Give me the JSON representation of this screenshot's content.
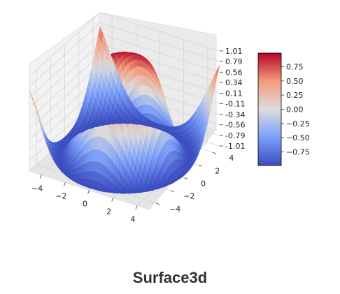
{
  "caption": "Surface3d",
  "chart_data": {
    "type": "surface3d",
    "colormap": "coolwarm",
    "function": "sin(sqrt(x^2 + y^2))",
    "x_ticks": [
      "−4",
      "−2",
      "0",
      "2",
      "4"
    ],
    "y_ticks": [
      "−4",
      "−2",
      "0",
      "2",
      "4"
    ],
    "z_ticks": [
      "1.01",
      "0.79",
      "0.56",
      "0.34",
      "0.11",
      "-0.11",
      "-0.34",
      "-0.56",
      "-0.79",
      "-1.01"
    ],
    "zlim": [
      -1.01,
      1.01
    ],
    "colorbar": {
      "ticks": [
        "0.75",
        "0.50",
        "0.25",
        "0.00",
        "−0.25",
        "−0.50",
        "−0.75"
      ],
      "range": [
        -0.99,
        0.99
      ]
    },
    "grid": true
  }
}
